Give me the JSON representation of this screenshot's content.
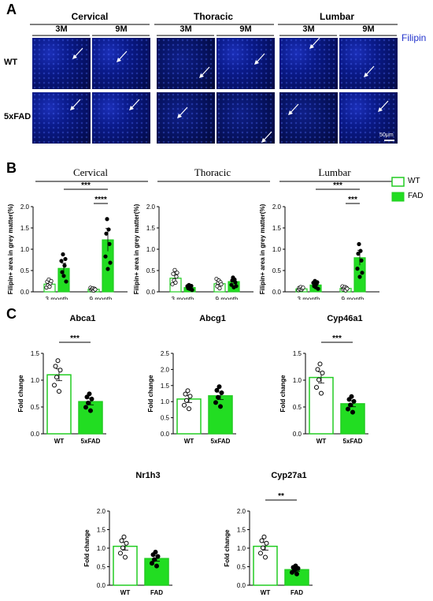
{
  "panels": {
    "a": "A",
    "b": "B",
    "c": "C"
  },
  "panel_a": {
    "regions": [
      "Cervical",
      "Thoracic",
      "Lumbar"
    ],
    "timepoints": [
      "3M",
      "9M"
    ],
    "rows": [
      "WT",
      "5xFAD"
    ],
    "stain_label": "Filipin",
    "scale_label": "50μm",
    "colors": {
      "stain": "#2233cc",
      "tissue": "#0a1a8a"
    }
  },
  "panel_b": {
    "titles": [
      "Cervical",
      "Thoracic",
      "Lumbar"
    ],
    "legend": [
      "WT",
      "FAD"
    ],
    "colors": {
      "wt": "#ffffff",
      "fad": "#22dd22",
      "edge": "#22cc22"
    }
  },
  "panel_c": {
    "titles": [
      "Abca1",
      "Abcg1",
      "Cyp46a1",
      "Nr1h3",
      "Cyp27a1"
    ]
  },
  "chart_data": [
    {
      "type": "bar",
      "title": "Cervical",
      "xlabel": "",
      "ylabel": "Filipin+ area in grey matter(%)",
      "ylim": [
        0,
        2.0
      ],
      "yticks": [
        "0.0",
        "0.5",
        "1.0",
        "1.5",
        "2.0"
      ],
      "categories": [
        "3 month",
        "9 month"
      ],
      "series": [
        {
          "name": "WT",
          "values": [
            0.18,
            0.06
          ]
        },
        {
          "name": "FAD",
          "values": [
            0.55,
            1.22
          ]
        }
      ],
      "significance": [
        {
          "label": "***",
          "between": "FAD 3 month vs FAD 9 month"
        },
        {
          "label": "****",
          "between": "WT 9 month vs FAD 9 month"
        }
      ]
    },
    {
      "type": "bar",
      "title": "Thoracic",
      "xlabel": "",
      "ylabel": "Filipin+ area in grey matter(%)",
      "ylim": [
        0,
        2.0
      ],
      "yticks": [
        "0.0",
        "0.5",
        "1.0",
        "1.5",
        "2.0"
      ],
      "categories": [
        "3 month",
        "9 month"
      ],
      "series": [
        {
          "name": "WT",
          "values": [
            0.32,
            0.19
          ]
        },
        {
          "name": "FAD",
          "values": [
            0.1,
            0.24
          ]
        }
      ]
    },
    {
      "type": "bar",
      "title": "Lumbar",
      "xlabel": "",
      "ylabel": "Filipin+ area in grey matter(%)",
      "ylim": [
        0,
        2.0
      ],
      "yticks": [
        "0.0",
        "0.5",
        "1.0",
        "1.5",
        "2.0"
      ],
      "categories": [
        "3 month",
        "9 month"
      ],
      "series": [
        {
          "name": "WT",
          "values": [
            0.07,
            0.08
          ]
        },
        {
          "name": "FAD",
          "values": [
            0.16,
            0.8
          ]
        }
      ],
      "significance": [
        {
          "label": "***",
          "between": "FAD 3 month vs FAD 9 month"
        },
        {
          "label": "***",
          "between": "WT 9 month vs FAD 9 month"
        }
      ]
    },
    {
      "type": "bar",
      "title": "Abca1",
      "ylabel": "Fold change",
      "ylim": [
        0,
        1.5
      ],
      "yticks": [
        "0.0",
        "0.5",
        "1.0",
        "1.5"
      ],
      "categories": [
        "WT",
        "5xFAD"
      ],
      "values": [
        1.1,
        0.6
      ],
      "significance": [
        {
          "label": "***",
          "between": "WT vs 5xFAD"
        }
      ]
    },
    {
      "type": "bar",
      "title": "Abcg1",
      "ylabel": "Fold change",
      "ylim": [
        0,
        2.5
      ],
      "yticks": [
        "0.0",
        "0.5",
        "1.0",
        "1.5",
        "2.0",
        "2.5"
      ],
      "categories": [
        "WT",
        "5xFAD"
      ],
      "values": [
        1.08,
        1.18
      ]
    },
    {
      "type": "bar",
      "title": "Cyp46a1",
      "ylabel": "Fold change",
      "ylim": [
        0,
        1.5
      ],
      "yticks": [
        "0.0",
        "0.5",
        "1.0",
        "1.5"
      ],
      "categories": [
        "WT",
        "5xFAD"
      ],
      "values": [
        1.05,
        0.56
      ],
      "significance": [
        {
          "label": "***",
          "between": "WT vs 5xFAD"
        }
      ]
    },
    {
      "type": "bar",
      "title": "Nr1h3",
      "ylabel": "Fold change",
      "ylim": [
        0,
        2.0
      ],
      "yticks": [
        "0.0",
        "0.5",
        "1.0",
        "1.5",
        "2.0"
      ],
      "categories": [
        "WT",
        "FAD"
      ],
      "values": [
        1.05,
        0.72
      ]
    },
    {
      "type": "bar",
      "title": "Cyp27a1",
      "ylabel": "Fold change",
      "ylim": [
        0,
        2.0
      ],
      "yticks": [
        "0.0",
        "0.5",
        "1.0",
        "1.5",
        "2.0"
      ],
      "categories": [
        "WT",
        "FAD"
      ],
      "values": [
        1.05,
        0.42
      ],
      "significance": [
        {
          "label": "**",
          "between": "WT vs FAD"
        }
      ]
    }
  ]
}
